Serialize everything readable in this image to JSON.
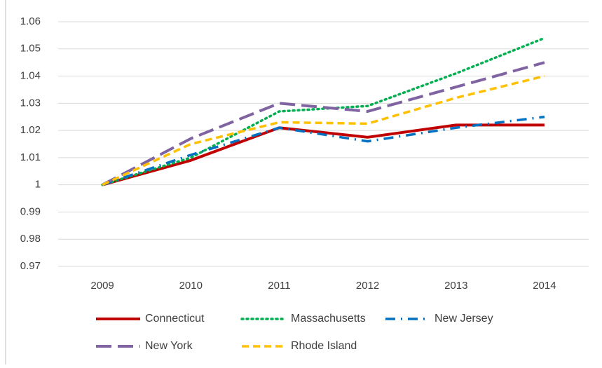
{
  "chart_data": {
    "type": "line",
    "categories": [
      "2009",
      "2010",
      "2011",
      "2012",
      "2013",
      "2014"
    ],
    "series": [
      {
        "name": "Connecticut",
        "color": "#c00000",
        "values": [
          1,
          1.009,
          1.021,
          1.0175,
          1.022,
          1.022
        ]
      },
      {
        "name": "Massachusetts",
        "color": "#00b050",
        "values": [
          1,
          1.01,
          1.027,
          1.029,
          1.041,
          1.054
        ]
      },
      {
        "name": "New Jersey",
        "color": "#0070c0",
        "values": [
          1,
          1.011,
          1.021,
          1.016,
          1.021,
          1.025
        ]
      },
      {
        "name": "New York",
        "color": "#8064a2",
        "values": [
          1,
          1.017,
          1.03,
          1.027,
          1.036,
          1.045
        ]
      },
      {
        "name": "Rhode Island",
        "color": "#ffc000",
        "values": [
          1,
          1.015,
          1.023,
          1.0225,
          1.032,
          1.04
        ]
      }
    ],
    "ylim": [
      0.97,
      1.06
    ],
    "yticks": [
      0.97,
      0.98,
      0.99,
      1,
      1.01,
      1.02,
      1.03,
      1.04,
      1.05,
      1.06
    ],
    "grid": true
  }
}
